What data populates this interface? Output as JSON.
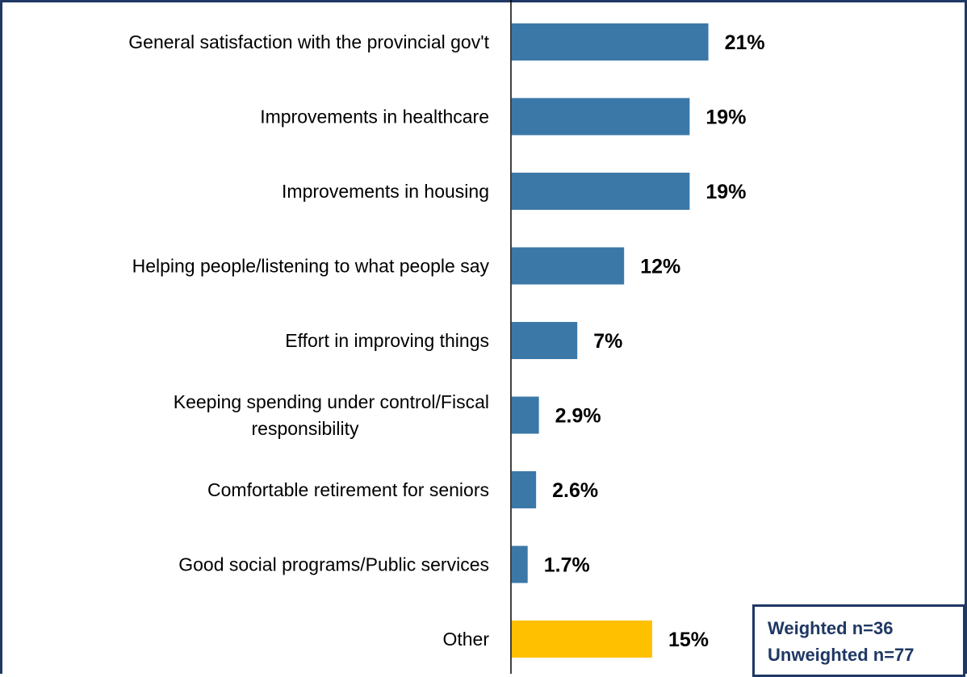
{
  "chart_data": {
    "type": "bar",
    "orientation": "horizontal",
    "categories": [
      [
        "General satisfaction with the provincial gov't"
      ],
      [
        "Improvements in healthcare"
      ],
      [
        "Improvements in housing"
      ],
      [
        "Helping people/listening to what people say"
      ],
      [
        "Effort in improving things"
      ],
      [
        "Keeping spending under control/Fiscal",
        "responsibility"
      ],
      [
        "Comfortable retirement for seniors"
      ],
      [
        "Good social programs/Public services"
      ],
      [
        "Other"
      ]
    ],
    "values": [
      21,
      19,
      19,
      12,
      7,
      2.9,
      2.6,
      1.7,
      15
    ],
    "value_labels": [
      "21%",
      "19%",
      "19%",
      "12%",
      "7%",
      "2.9%",
      "2.6%",
      "1.7%",
      "15%"
    ],
    "highlight_index": 8,
    "colors": {
      "bar": "#3b78a8",
      "highlight_bar": "#ffc000",
      "frame": "#1f3864",
      "axis": "#000000"
    },
    "xlim": [
      0,
      25
    ],
    "grid": false,
    "legend": "none"
  },
  "sample_note": {
    "weighted": "Weighted n=36",
    "unweighted": "Unweighted n=77"
  }
}
